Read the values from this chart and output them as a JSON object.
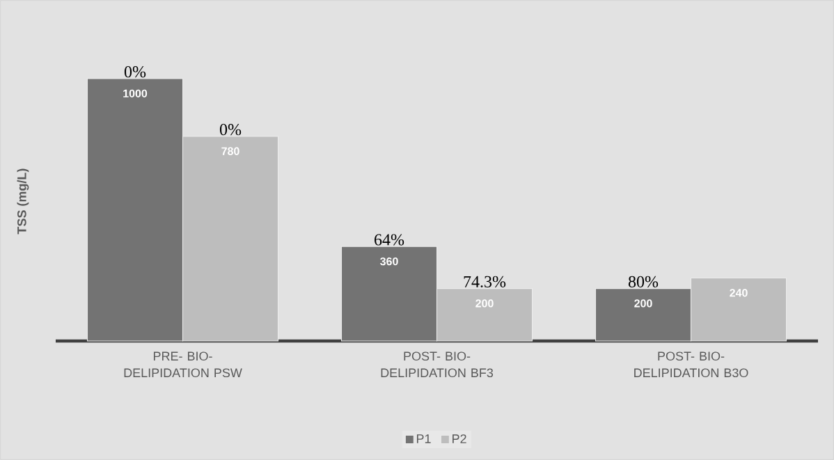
{
  "chart_data": {
    "type": "bar",
    "ylabel": "TSS (mg/L)",
    "categories": [
      "PRE- BIO-DELIPIDATION PSW",
      "POST- BIO-DELIPIDATION BF3",
      "POST- BIO-DELIPIDATION B3O"
    ],
    "series": [
      {
        "name": "P1",
        "color": "#737373",
        "values": [
          1000,
          360,
          200
        ]
      },
      {
        "name": "P2",
        "color": "#bdbdbd",
        "values": [
          780,
          200,
          240
        ]
      }
    ],
    "data_labels": true,
    "legend": "bottom",
    "annotations": [
      {
        "text": "0%",
        "x": "PRE- BIO-DELIPIDATION PSW",
        "y": 1000
      },
      {
        "text": "0%",
        "x": "PRE- BIO-DELIPIDATION PSW",
        "y": 780
      },
      {
        "text": "64%",
        "x": "POST- BIO-DELIPIDATION BF3",
        "y": 360
      },
      {
        "text": "74.3%",
        "x": "POST- BIO-DELIPIDATION BF3",
        "y": 200
      },
      {
        "text": "80%",
        "x": "POST- BIO-DELIPIDATION B3O",
        "y": 200
      }
    ]
  }
}
